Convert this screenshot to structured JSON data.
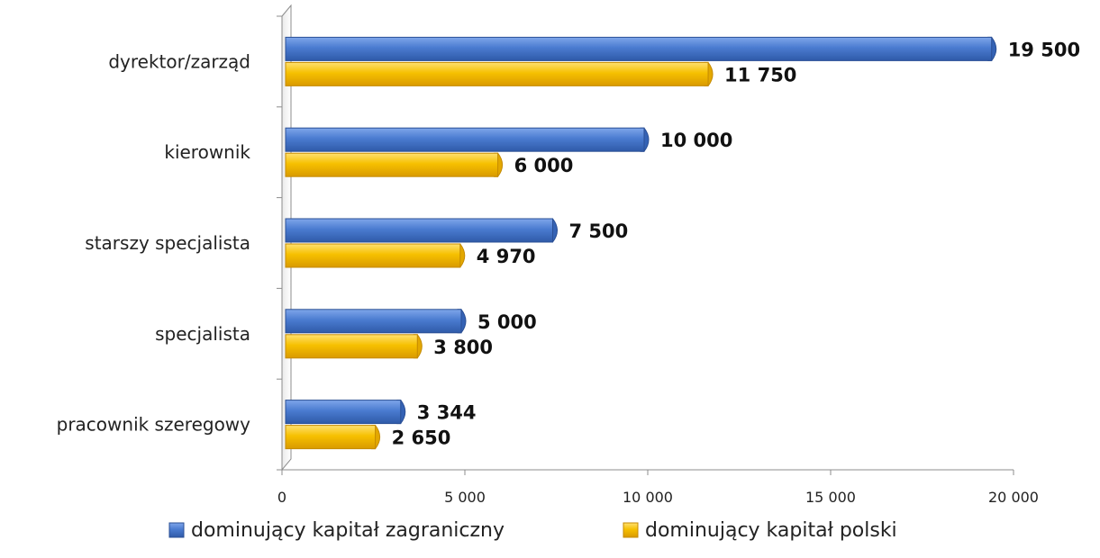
{
  "chart_data": {
    "type": "bar",
    "orientation": "horizontal",
    "categories": [
      "dyrektor/zarząd",
      "kierownik",
      "starszy specjalista",
      "specjalista",
      "pracownik szeregowy"
    ],
    "series": [
      {
        "name": "dominujący kapitał zagraniczny",
        "values": [
          19500,
          10000,
          7500,
          5000,
          3344
        ],
        "color": "#4a7bd0",
        "data_labels": [
          "19 500",
          "10 000",
          "7 500",
          "5 000",
          "3 344"
        ]
      },
      {
        "name": "dominujący kapitał polski",
        "values": [
          11750,
          6000,
          4970,
          3800,
          2650
        ],
        "color": "#f4c20d",
        "data_labels": [
          "11 750",
          "6 000",
          "4 970",
          "3 800",
          "2 650"
        ]
      }
    ],
    "xlim": [
      0,
      20000
    ],
    "xticks": [
      0,
      5000,
      10000,
      15000,
      20000
    ],
    "xtick_labels": [
      "0",
      "5 000",
      "10 000",
      "15 000",
      "20 000"
    ],
    "grid": false,
    "legend_position": "bottom"
  }
}
